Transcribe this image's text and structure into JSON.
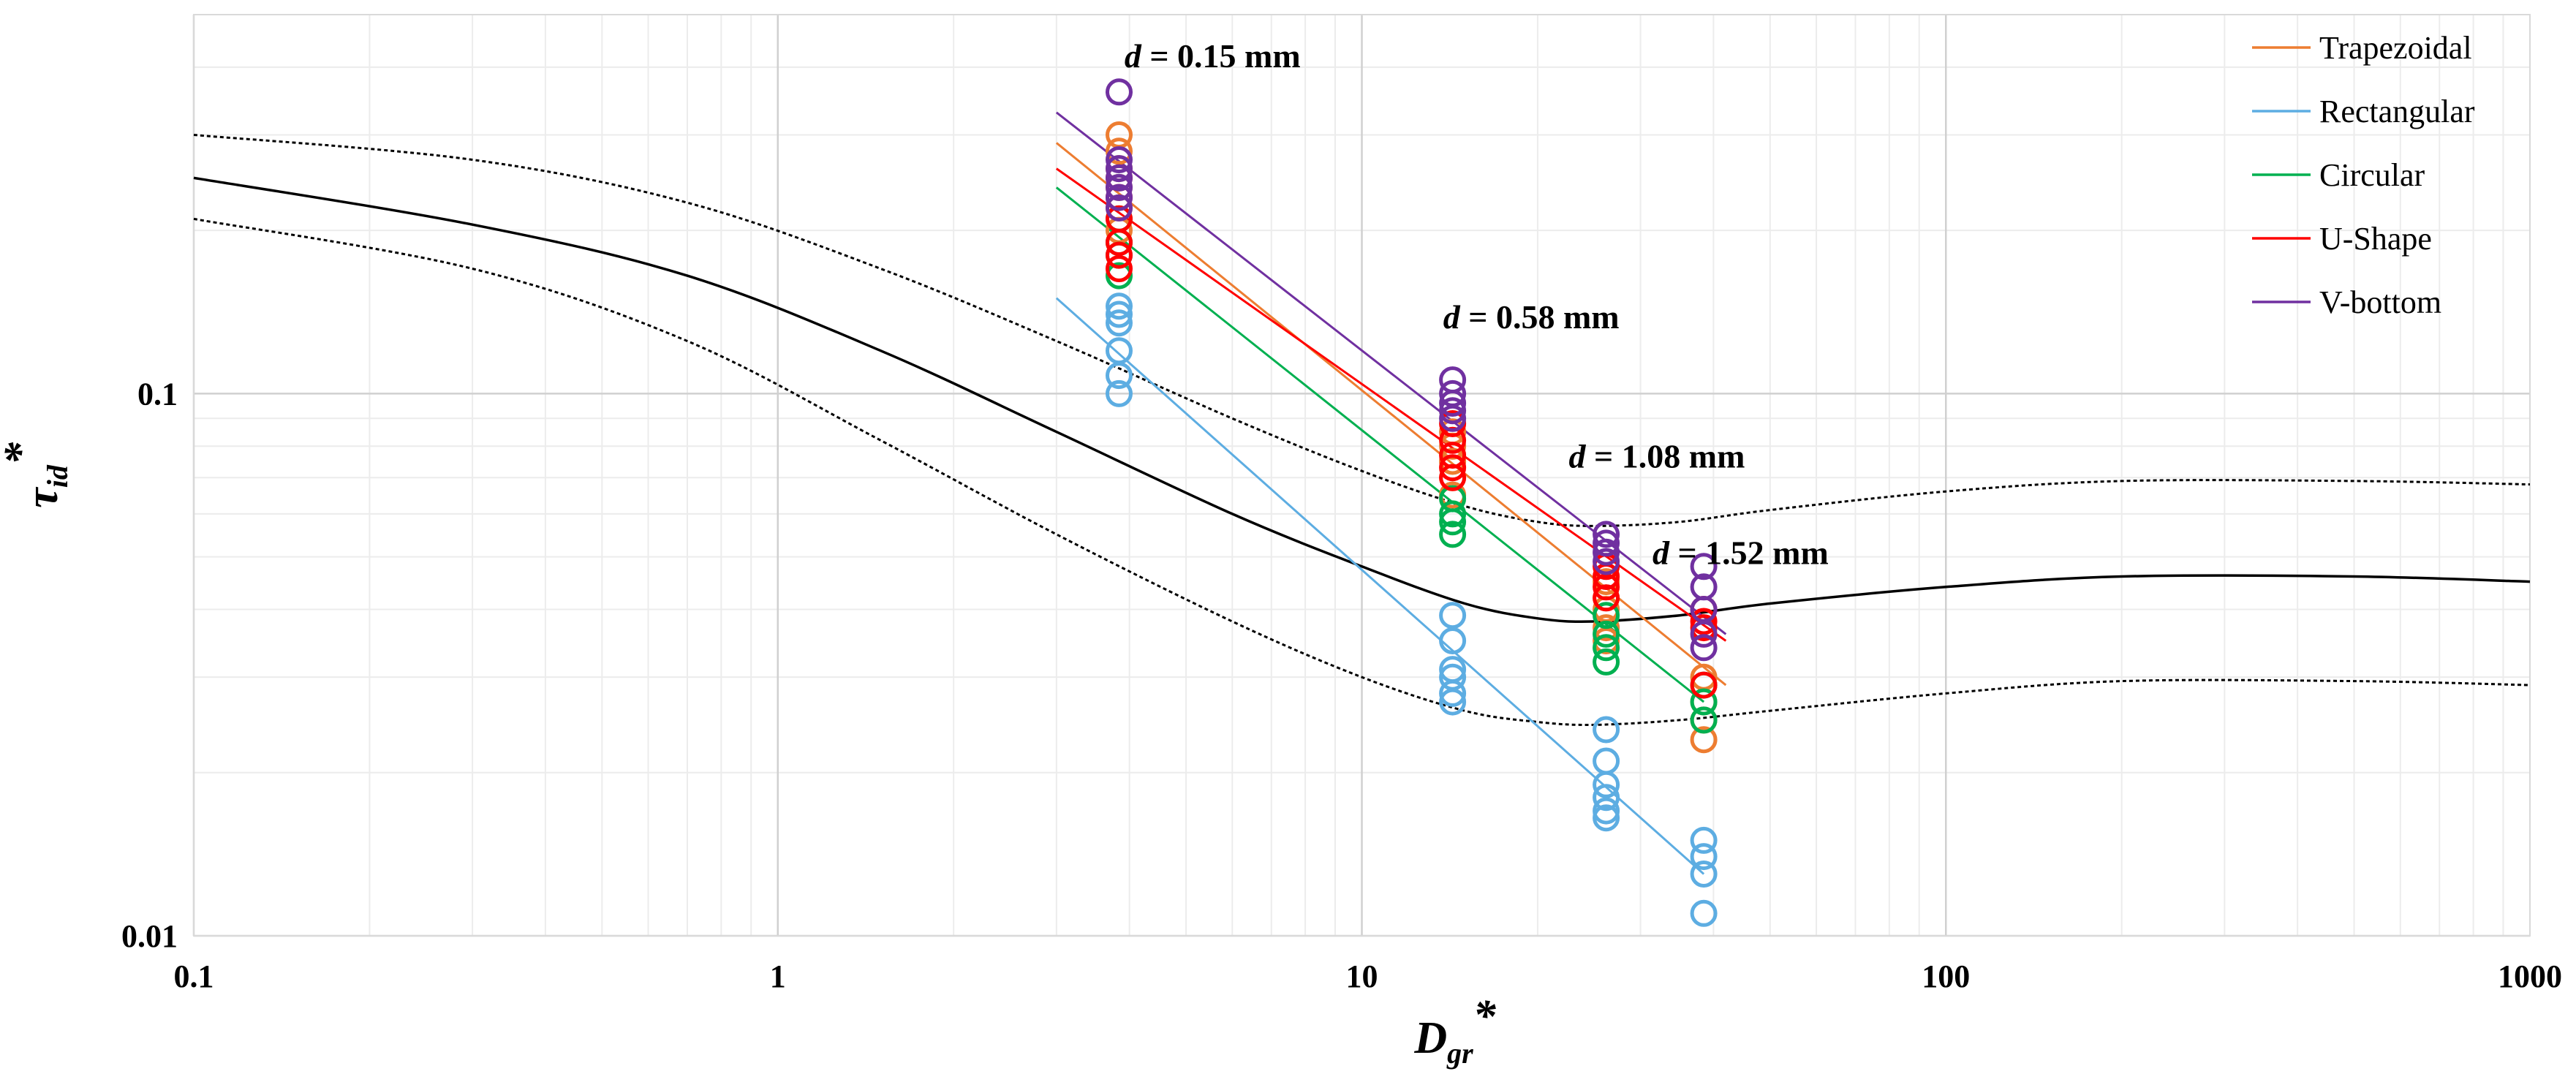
{
  "chart_data": {
    "type": "scatter",
    "x_scale": "log",
    "y_scale": "log",
    "xlim": [
      0.1,
      1000
    ],
    "ylim": [
      0.01,
      0.5
    ],
    "xlabel": "D",
    "xlabel_sub": "gr",
    "xlabel_sup": "*",
    "ylabel": "τ",
    "ylabel_sub": "id",
    "ylabel_sup": "*",
    "x_ticks": [
      {
        "value": 0.1,
        "label": "0.1"
      },
      {
        "value": 1,
        "label": "1"
      },
      {
        "value": 10,
        "label": "10"
      },
      {
        "value": 100,
        "label": "100"
      },
      {
        "value": 1000,
        "label": "1000"
      }
    ],
    "y_ticks": [
      {
        "value": 0.01,
        "label": "0.01"
      },
      {
        "value": 0.1,
        "label": "0.1"
      }
    ],
    "grid": true,
    "legend_position": "top-right",
    "annotations": [
      {
        "name": "annot-d015",
        "italic": "d",
        "text": " = 0.15 mm",
        "x": 5.55,
        "y": 0.4
      },
      {
        "name": "annot-d058",
        "italic": "d",
        "text": " = 0.58 mm",
        "x": 19.5,
        "y": 0.132
      },
      {
        "name": "annot-d108",
        "italic": "d",
        "text": " = 1.08 mm",
        "x": 32.0,
        "y": 0.073
      },
      {
        "name": "annot-d152",
        "italic": "d",
        "text": " = 1.52 mm",
        "x": 44.5,
        "y": 0.0485
      }
    ],
    "reference_curves": [
      {
        "name": "reference-curve",
        "style": "solid",
        "x": [
          0.1,
          0.3,
          0.7,
          1.5,
          3,
          6,
          10,
          15,
          20,
          25,
          35,
          50,
          100,
          200,
          500,
          1000
        ],
        "y": [
          0.25,
          0.205,
          0.165,
          0.12,
          0.085,
          0.06,
          0.048,
          0.041,
          0.0385,
          0.038,
          0.039,
          0.041,
          0.044,
          0.046,
          0.046,
          0.045
        ]
      },
      {
        "name": "upper-bound-curve",
        "style": "dotted",
        "x": [
          0.1,
          0.3,
          0.7,
          1.5,
          3,
          6,
          10,
          15,
          20,
          25,
          35,
          50,
          100,
          200,
          500,
          1000
        ],
        "y": [
          0.3,
          0.27,
          0.225,
          0.17,
          0.125,
          0.09,
          0.072,
          0.062,
          0.058,
          0.057,
          0.058,
          0.061,
          0.066,
          0.069,
          0.069,
          0.068
        ]
      },
      {
        "name": "lower-bound-curve",
        "style": "dotted",
        "x": [
          0.1,
          0.3,
          0.7,
          1.5,
          3,
          6,
          10,
          15,
          20,
          25,
          35,
          50,
          100,
          200,
          500,
          1000
        ],
        "y": [
          0.21,
          0.17,
          0.125,
          0.082,
          0.055,
          0.038,
          0.03,
          0.026,
          0.0248,
          0.0245,
          0.025,
          0.026,
          0.028,
          0.0295,
          0.0295,
          0.029
        ]
      }
    ],
    "series": [
      {
        "name": "Trapezoidal",
        "color": "#ED7D31",
        "fit": {
          "x": [
            3,
            42
          ],
          "y": [
            0.29,
            0.029
          ]
        },
        "points": [
          {
            "x": 3.84,
            "y": [
              0.3,
              0.28,
              0.26,
              0.24,
              0.22,
              0.2,
              0.19
            ]
          },
          {
            "x": 14.3,
            "y": [
              0.085,
              0.08,
              0.075,
              0.07,
              0.065
            ]
          },
          {
            "x": 26.2,
            "y": [
              0.045,
              0.042,
              0.04,
              0.037,
              0.035
            ]
          },
          {
            "x": 38.5,
            "y": [
              0.03,
              0.027,
              0.025,
              0.023
            ]
          }
        ]
      },
      {
        "name": "Rectangular",
        "color": "#5DADE2",
        "fit": {
          "x": [
            3,
            38.5
          ],
          "y": [
            0.15,
            0.013
          ]
        },
        "points": [
          {
            "x": 3.84,
            "y": [
              0.145,
              0.14,
              0.135,
              0.12,
              0.108,
              0.1
            ]
          },
          {
            "x": 14.3,
            "y": [
              0.039,
              0.035,
              0.031,
              0.03,
              0.028,
              0.027
            ]
          },
          {
            "x": 26.2,
            "y": [
              0.024,
              0.021,
              0.019,
              0.018,
              0.017,
              0.0165
            ]
          },
          {
            "x": 38.5,
            "y": [
              0.015,
              0.014,
              0.013,
              0.011
            ]
          }
        ]
      },
      {
        "name": "Circular",
        "color": "#00B050",
        "fit": {
          "x": [
            3,
            38.5
          ],
          "y": [
            0.24,
            0.027
          ]
        },
        "points": [
          {
            "x": 3.84,
            "y": [
              0.21,
              0.19,
              0.18,
              0.165
            ]
          },
          {
            "x": 14.3,
            "y": [
              0.064,
              0.06,
              0.058,
              0.055
            ]
          },
          {
            "x": 26.2,
            "y": [
              0.039,
              0.036,
              0.034,
              0.032
            ]
          },
          {
            "x": 38.5,
            "y": [
              0.029,
              0.027,
              0.025
            ]
          }
        ]
      },
      {
        "name": "U-Shape",
        "color": "#FF0000",
        "fit": {
          "x": [
            3,
            42
          ],
          "y": [
            0.26,
            0.035
          ]
        },
        "points": [
          {
            "x": 3.84,
            "y": [
              0.25,
              0.23,
              0.21,
              0.19,
              0.18,
              0.17
            ]
          },
          {
            "x": 14.3,
            "y": [
              0.088,
              0.082,
              0.077,
              0.073,
              0.07
            ]
          },
          {
            "x": 26.2,
            "y": [
              0.048,
              0.046,
              0.044,
              0.042
            ]
          },
          {
            "x": 38.5,
            "y": [
              0.04,
              0.038,
              0.037,
              0.029
            ]
          }
        ]
      },
      {
        "name": "V-bottom",
        "color": "#7030A0",
        "fit": {
          "x": [
            3,
            42
          ],
          "y": [
            0.33,
            0.036
          ]
        },
        "points": [
          {
            "x": 3.84,
            "y": [
              0.36,
              0.27,
              0.26,
              0.25,
              0.24,
              0.23,
              0.22
            ]
          },
          {
            "x": 14.3,
            "y": [
              0.106,
              0.1,
              0.096,
              0.093,
              0.09
            ]
          },
          {
            "x": 26.2,
            "y": [
              0.055,
              0.053,
              0.051,
              0.049
            ]
          },
          {
            "x": 38.5,
            "y": [
              0.048,
              0.044,
              0.04,
              0.036,
              0.034
            ]
          }
        ]
      }
    ]
  }
}
